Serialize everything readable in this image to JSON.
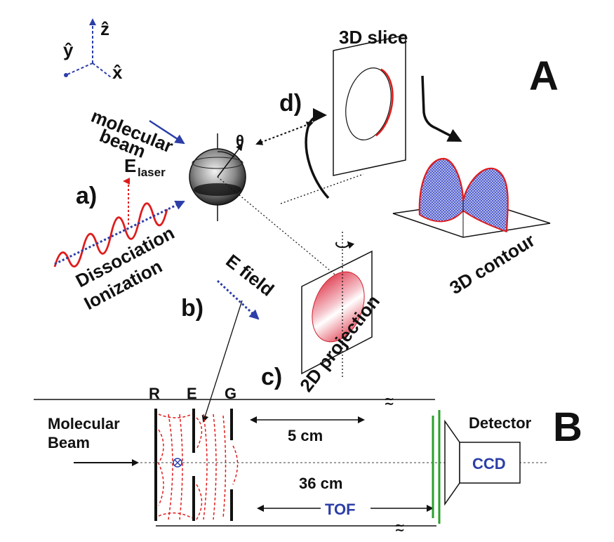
{
  "panels": {
    "top_label": "A",
    "bottom_label": "B"
  },
  "axes": {
    "z": "ẑ",
    "y": "ŷ",
    "x": "x̂"
  },
  "labels": {
    "molecular_beam_line1": "molecular",
    "molecular_beam_line2": "beam",
    "e_laser_main": "E",
    "e_laser_sub": "laser",
    "theta": "θ",
    "step_a": "a)",
    "step_b": "b)",
    "step_c": "c)",
    "step_d": "d)",
    "dissociation": "Dissociation",
    "ionization": "Ionization",
    "e_field": "E field",
    "slice_3d": "3D slice",
    "contour_3d": "3D contour",
    "projection_2d": "2D projection"
  },
  "apparatus": {
    "electrode_r": "R",
    "electrode_e": "E",
    "electrode_g": "G",
    "molecular_beam_line1": "Molecular",
    "molecular_beam_line2": "Beam",
    "distance_short": "5 cm",
    "distance_long": "36 cm",
    "tof": "TOF",
    "detector": "Detector",
    "ccd": "CCD",
    "break_mark": "≀≀"
  },
  "colors": {
    "laser_red": "#e01b1b",
    "beam_blue": "#2c3ea8",
    "detector_green": "#2aa12a",
    "ink": "#111111"
  }
}
